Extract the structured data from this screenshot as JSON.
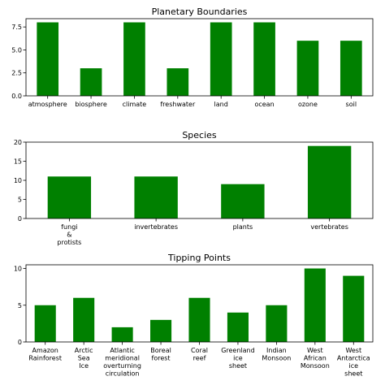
{
  "chart_data": [
    {
      "type": "bar",
      "title": "Planetary Boundaries",
      "categories": [
        "atmosphere",
        "biosphere",
        "climate",
        "freshwater",
        "land",
        "ocean",
        "ozone",
        "soil"
      ],
      "values": [
        8,
        3,
        8,
        3,
        8,
        8,
        6,
        6
      ],
      "ylim": [
        0,
        8.4
      ],
      "yticks": [
        0,
        2.5,
        5,
        7.5
      ],
      "ytick_labels": [
        "0.0",
        "2.5",
        "5.0",
        "7.5"
      ],
      "bar_color": "#008000",
      "grid": false
    },
    {
      "type": "bar",
      "title": "Species",
      "categories": [
        "fungi\n&\nprotists",
        "invertebrates",
        "plants",
        "vertebrates"
      ],
      "values": [
        11,
        11,
        9,
        19
      ],
      "ylim": [
        0,
        20
      ],
      "yticks": [
        0,
        5,
        10,
        15,
        20
      ],
      "ytick_labels": [
        "0",
        "5",
        "10",
        "15",
        "20"
      ],
      "bar_color": "#008000",
      "grid": false
    },
    {
      "type": "bar",
      "title": "Tipping Points",
      "categories": [
        "Amazon\nRainforest",
        "Arctic\nSea\nIce",
        "Atlantic\nmeridional\noverturning\ncirculation",
        "Boreal\nforest",
        "Coral\nreef",
        "Greenland\nice\nsheet",
        "Indian\nMonsoon",
        "West\nAfrican\nMonsoon",
        "West\nAntarctica\nice\nsheet"
      ],
      "values": [
        5,
        6,
        2,
        3,
        6,
        4,
        5,
        10,
        9
      ],
      "ylim": [
        0,
        10.5
      ],
      "yticks": [
        0,
        5,
        10
      ],
      "ytick_labels": [
        "0",
        "5",
        "10"
      ],
      "bar_color": "#008000",
      "grid": false
    }
  ]
}
